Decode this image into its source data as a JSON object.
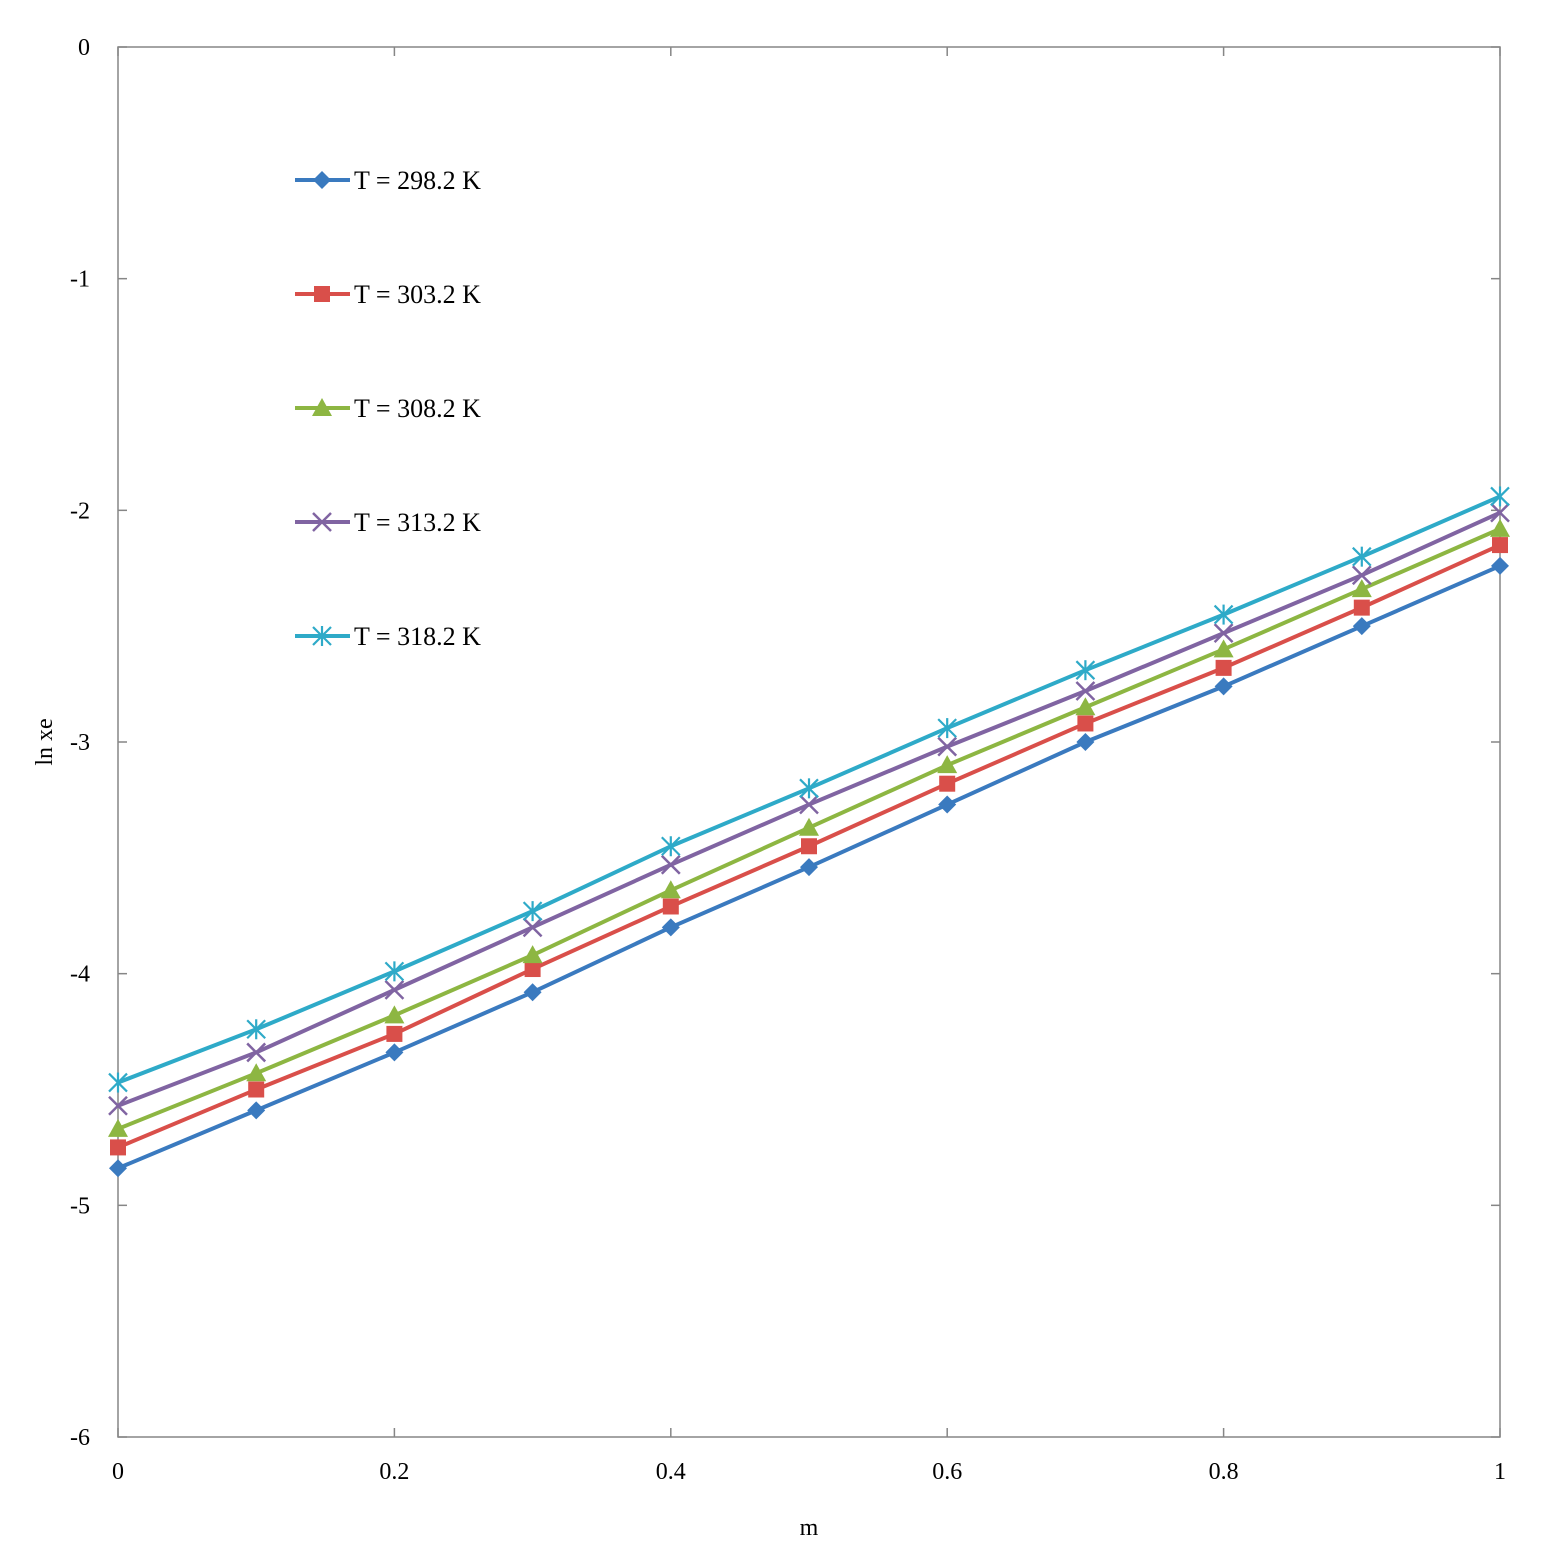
{
  "chart_data": {
    "type": "line",
    "title": "",
    "xlabel": "m",
    "ylabel": "ln xe",
    "xlim": [
      0,
      1
    ],
    "ylim": [
      -6,
      0
    ],
    "x_ticks": [
      0,
      0.2,
      0.4,
      0.6,
      0.8,
      1
    ],
    "x_tick_labels": [
      "0",
      "0.2",
      "0.4",
      "0.6",
      "0.8",
      "1"
    ],
    "y_ticks": [
      0,
      -1,
      -2,
      -3,
      -4,
      -5,
      -6
    ],
    "y_tick_labels": [
      "0",
      "-1",
      "-2",
      "-3",
      "-4",
      "-5",
      "-6"
    ],
    "grid": false,
    "legend_position": "top-left",
    "x": [
      0,
      0.1,
      0.2,
      0.3,
      0.4,
      0.5,
      0.6,
      0.7,
      0.8,
      0.9,
      1.0
    ],
    "series": [
      {
        "name": "T = 298.2 K",
        "color": "#3a7abf",
        "marker": "diamond",
        "values": [
          -4.84,
          -4.59,
          -4.34,
          -4.08,
          -3.8,
          -3.54,
          -3.27,
          -3.0,
          -2.76,
          -2.5,
          -2.24
        ]
      },
      {
        "name": "T = 303.2 K",
        "color": "#d94f4a",
        "marker": "square",
        "values": [
          -4.75,
          -4.5,
          -4.26,
          -3.98,
          -3.71,
          -3.45,
          -3.18,
          -2.92,
          -2.68,
          -2.42,
          -2.15
        ]
      },
      {
        "name": "T = 308.2 K",
        "color": "#8db642",
        "marker": "triangle",
        "values": [
          -4.67,
          -4.43,
          -4.18,
          -3.92,
          -3.64,
          -3.37,
          -3.1,
          -2.85,
          -2.6,
          -2.34,
          -2.08
        ]
      },
      {
        "name": "T = 313.2 K",
        "color": "#8064a2",
        "marker": "x",
        "values": [
          -4.57,
          -4.34,
          -4.07,
          -3.8,
          -3.53,
          -3.27,
          -3.02,
          -2.78,
          -2.53,
          -2.28,
          -2.01
        ]
      },
      {
        "name": "T = 318.2 K",
        "color": "#2eaac8",
        "marker": "star",
        "values": [
          -4.47,
          -4.24,
          -3.99,
          -3.73,
          -3.45,
          -3.2,
          -2.94,
          -2.69,
          -2.45,
          -2.2,
          -1.94
        ]
      }
    ]
  }
}
